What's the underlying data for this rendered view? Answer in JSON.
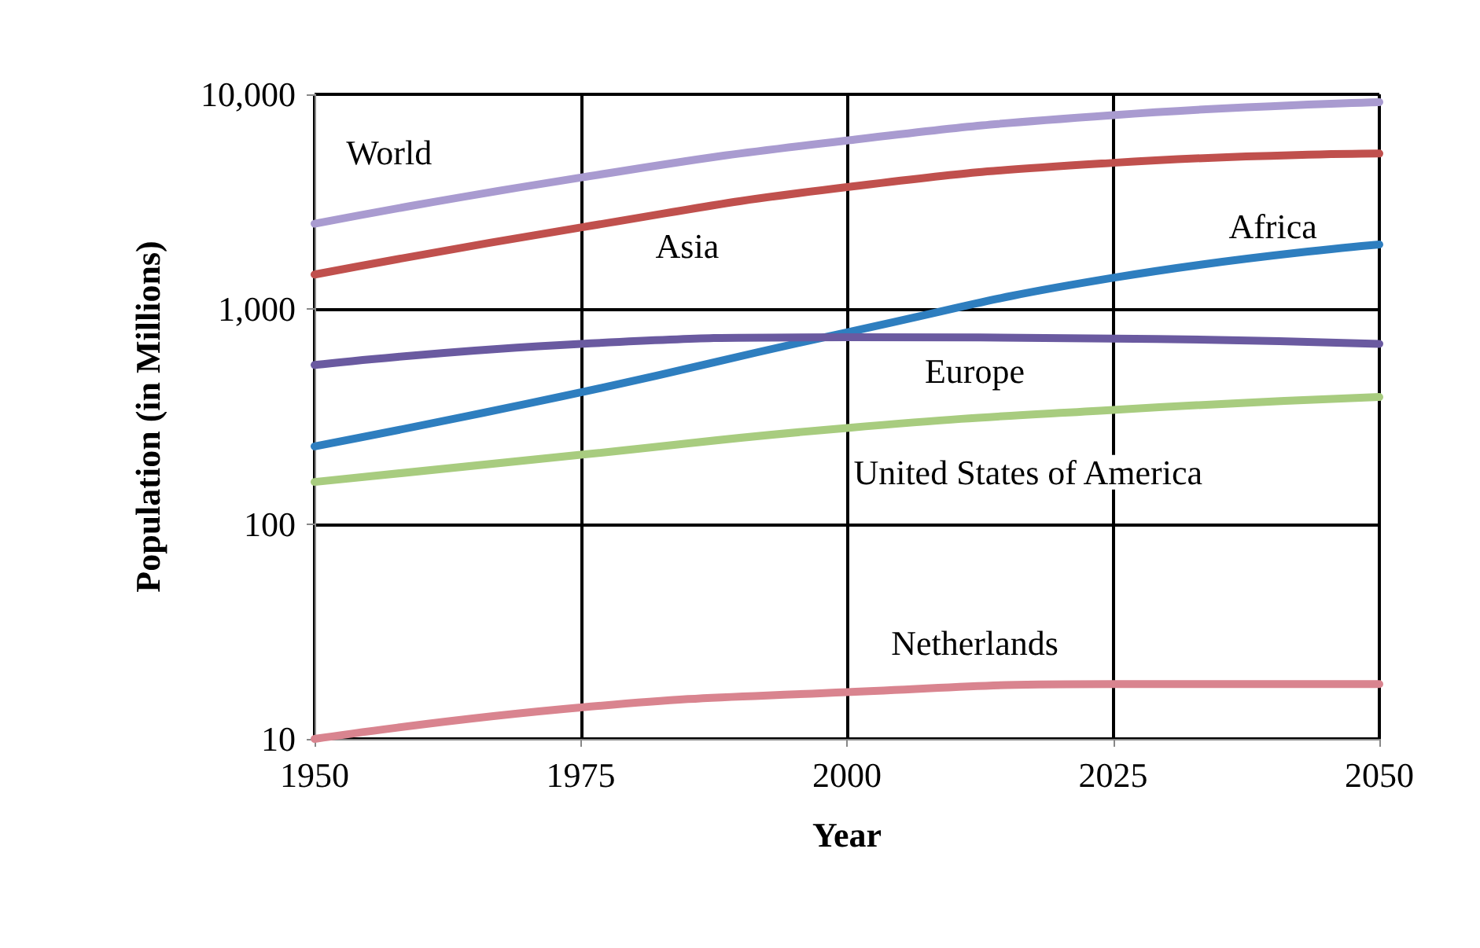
{
  "chart_data": {
    "type": "line",
    "xlabel": "Year",
    "ylabel": "Population (in Millions)",
    "x": [
      1950,
      1975,
      2000,
      2025,
      2050
    ],
    "series": [
      {
        "name": "World",
        "color": "#a99bd0",
        "values": [
          2500,
          4100,
          6100,
          8000,
          9200
        ]
      },
      {
        "name": "Asia",
        "color": "#c0504d",
        "values": [
          1450,
          2400,
          3700,
          4800,
          5300
        ]
      },
      {
        "name": "Africa",
        "color": "#2e7ebf",
        "values": [
          230,
          410,
          780,
          1400,
          2000
        ]
      },
      {
        "name": "Europe",
        "color": "#6a5aa0",
        "values": [
          550,
          690,
          740,
          730,
          690
        ]
      },
      {
        "name": "United States of America",
        "color": "#a8cc7f",
        "values": [
          157,
          210,
          280,
          340,
          390
        ]
      },
      {
        "name": "Netherlands",
        "color": "#d9848f",
        "values": [
          10,
          14,
          16.5,
          18,
          18
        ]
      }
    ],
    "xlim": [
      1950,
      2050
    ],
    "xticks": [
      1950,
      1975,
      2000,
      2025,
      2050
    ],
    "ylim": [
      10,
      10000
    ],
    "yticks": [
      10,
      100,
      {
        "value": 1000,
        "label": "1,000"
      },
      {
        "value": 10000,
        "label": "10,000"
      }
    ],
    "log": true,
    "grid": true,
    "marker": "none",
    "line_style": "solid"
  }
}
